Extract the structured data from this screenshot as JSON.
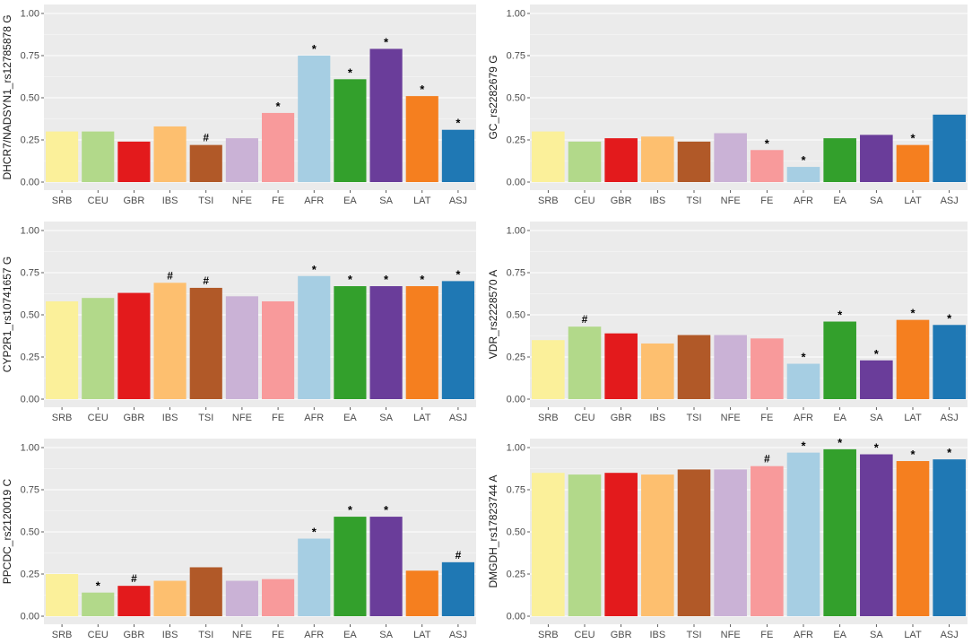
{
  "colors": {
    "panel_bg": "#ebebeb",
    "grid": "#ffffff",
    "axis_text": "#4d4d4d",
    "label_text": "#1a1a1a",
    "palette": [
      "#fbf09a",
      "#b2d98a",
      "#e31a1c",
      "#fdbf6f",
      "#b15928",
      "#cab2d6",
      "#f89a9b",
      "#a6cee3",
      "#33a02c",
      "#6a3d9a",
      "#f57f1f",
      "#1f78b4"
    ]
  },
  "chart_data": [
    {
      "type": "bar",
      "ylabel": "DHCR7/NADSYN1_rs12785878 G",
      "categories": [
        "SRB",
        "CEU",
        "GBR",
        "IBS",
        "TSI",
        "NFE",
        "FE",
        "AFR",
        "EA",
        "SA",
        "LAT",
        "ASJ"
      ],
      "values": [
        0.3,
        0.3,
        0.24,
        0.33,
        0.22,
        0.26,
        0.41,
        0.75,
        0.61,
        0.79,
        0.51,
        0.31
      ],
      "markers": [
        "",
        "",
        "",
        "",
        "#",
        "",
        "*",
        "*",
        "*",
        "*",
        "*",
        "*"
      ],
      "ylim": [
        0,
        1
      ],
      "yticks": [
        "0.00",
        "0.25",
        "0.50",
        "0.75",
        "1.00"
      ]
    },
    {
      "type": "bar",
      "ylabel": "GC_rs2282679 G",
      "categories": [
        "SRB",
        "CEU",
        "GBR",
        "IBS",
        "TSI",
        "NFE",
        "FE",
        "AFR",
        "EA",
        "SA",
        "LAT",
        "ASJ"
      ],
      "values": [
        0.3,
        0.24,
        0.26,
        0.27,
        0.24,
        0.29,
        0.19,
        0.09,
        0.26,
        0.28,
        0.22,
        0.4
      ],
      "markers": [
        "",
        "",
        "",
        "",
        "",
        "",
        "*",
        "*",
        "",
        "",
        "*",
        ""
      ],
      "ylim": [
        0,
        1
      ],
      "yticks": [
        "0.00",
        "0.25",
        "0.50",
        "0.75",
        "1.00"
      ]
    },
    {
      "type": "bar",
      "ylabel": "CYP2R1_rs10741657 G",
      "categories": [
        "SRB",
        "CEU",
        "GBR",
        "IBS",
        "TSI",
        "NFE",
        "FE",
        "AFR",
        "EA",
        "SA",
        "LAT",
        "ASJ"
      ],
      "values": [
        0.58,
        0.6,
        0.63,
        0.69,
        0.66,
        0.61,
        0.58,
        0.73,
        0.67,
        0.67,
        0.67,
        0.7
      ],
      "markers": [
        "",
        "",
        "",
        "#",
        "#",
        "",
        "",
        "*",
        "*",
        "*",
        "*",
        "*"
      ],
      "ylim": [
        0,
        1
      ],
      "yticks": [
        "0.00",
        "0.25",
        "0.50",
        "0.75",
        "1.00"
      ]
    },
    {
      "type": "bar",
      "ylabel": "VDR_rs2228570 A",
      "categories": [
        "SRB",
        "CEU",
        "GBR",
        "IBS",
        "TSI",
        "NFE",
        "FE",
        "AFR",
        "EA",
        "SA",
        "LAT",
        "ASJ"
      ],
      "values": [
        0.35,
        0.43,
        0.39,
        0.33,
        0.38,
        0.38,
        0.36,
        0.21,
        0.46,
        0.23,
        0.47,
        0.44
      ],
      "markers": [
        "",
        "#",
        "",
        "",
        "",
        "",
        "",
        "*",
        "*",
        "*",
        "*",
        "*"
      ],
      "ylim": [
        0,
        1
      ],
      "yticks": [
        "0.00",
        "0.25",
        "0.50",
        "0.75",
        "1.00"
      ]
    },
    {
      "type": "bar",
      "ylabel": "PPCDC_rs2120019 C",
      "categories": [
        "SRB",
        "CEU",
        "GBR",
        "IBS",
        "TSI",
        "NFE",
        "FE",
        "AFR",
        "EA",
        "SA",
        "LAT",
        "ASJ"
      ],
      "values": [
        0.25,
        0.14,
        0.18,
        0.21,
        0.29,
        0.21,
        0.22,
        0.46,
        0.59,
        0.59,
        0.27,
        0.32
      ],
      "markers": [
        "",
        "*",
        "#",
        "",
        "",
        "",
        "",
        "*",
        "*",
        "*",
        "",
        "#"
      ],
      "ylim": [
        0,
        1
      ],
      "yticks": [
        "0.00",
        "0.25",
        "0.50",
        "0.75",
        "1.00"
      ]
    },
    {
      "type": "bar",
      "ylabel": "DMGDH_rs17823744 A",
      "categories": [
        "SRB",
        "CEU",
        "GBR",
        "IBS",
        "TSI",
        "NFE",
        "FE",
        "AFR",
        "EA",
        "SA",
        "LAT",
        "ASJ"
      ],
      "values": [
        0.85,
        0.84,
        0.85,
        0.84,
        0.87,
        0.87,
        0.89,
        0.97,
        0.99,
        0.96,
        0.92,
        0.93
      ],
      "markers": [
        "",
        "",
        "",
        "",
        "",
        "",
        "#",
        "*",
        "*",
        "*",
        "*",
        "*"
      ],
      "ylim": [
        0,
        1
      ],
      "yticks": [
        "0.00",
        "0.25",
        "0.50",
        "0.75",
        "1.00"
      ]
    }
  ]
}
